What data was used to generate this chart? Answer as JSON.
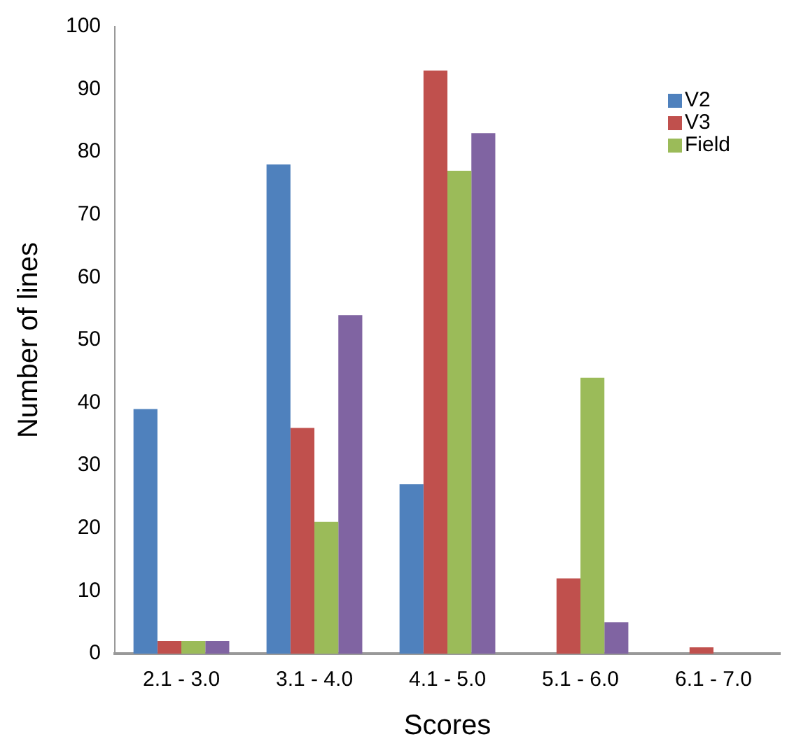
{
  "chart_data": {
    "type": "bar",
    "xlabel": "Scores",
    "ylabel": "Number of lines",
    "categories": [
      "2.1 - 3.0",
      "3.1 - 4.0",
      "4.1 - 5.0",
      "5.1 - 6.0",
      "6.1 - 7.0"
    ],
    "series": [
      {
        "name": "V2",
        "color": "#4f81bd",
        "values": [
          39,
          78,
          27,
          0,
          0
        ]
      },
      {
        "name": "V3",
        "color": "#c0504d",
        "values": [
          2,
          36,
          93,
          12,
          1
        ]
      },
      {
        "name": "Field",
        "color": "#9bbb59",
        "values": [
          2,
          21,
          77,
          44,
          0
        ]
      },
      {
        "color": "#8064a2",
        "values": [
          2,
          54,
          83,
          5,
          0
        ]
      }
    ],
    "ylim": [
      0,
      100
    ],
    "yticks": [
      0,
      10,
      20,
      30,
      40,
      50,
      60,
      70,
      80,
      90,
      100
    ],
    "grid": false,
    "legend": "top right"
  }
}
